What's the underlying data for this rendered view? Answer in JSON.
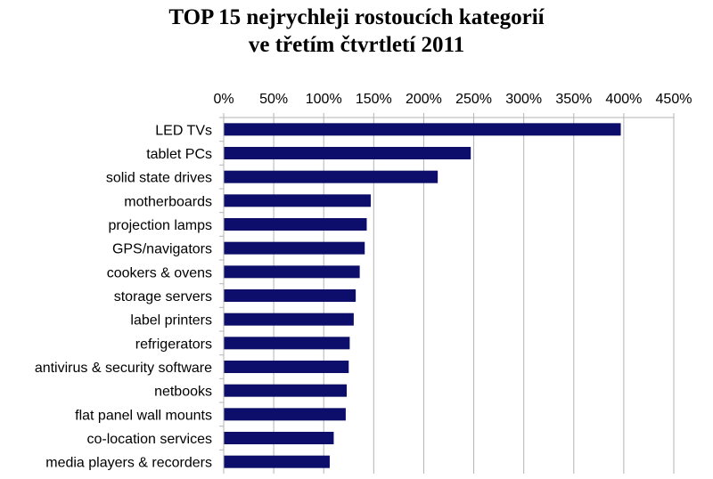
{
  "chart_data": {
    "type": "bar",
    "orientation": "horizontal",
    "title": "TOP 15 nejrychleji rostoucích kategorií",
    "subtitle": "ve třetím čtvrtletí 2011",
    "xlim": [
      0,
      450
    ],
    "x_unit": "%",
    "x_ticks": [
      "0%",
      "50%",
      "100%",
      "150%",
      "200%",
      "250%",
      "300%",
      "350%",
      "400%",
      "450%"
    ],
    "x_tick_values": [
      0,
      50,
      100,
      150,
      200,
      250,
      300,
      350,
      400,
      450
    ],
    "x_axis_position": "top",
    "grid": true,
    "bar_color": "#0d0d6b",
    "categories": [
      "LED TVs",
      "tablet PCs",
      "solid state drives",
      "motherboards",
      "projection lamps",
      "GPS/navigators",
      "cookers & ovens",
      "storage servers",
      "label printers",
      "refrigerators",
      "antivirus & security software",
      "netbooks",
      "flat panel wall mounts",
      "co-location services",
      "media players & recorders"
    ],
    "values": [
      397,
      247,
      214,
      147,
      143,
      141,
      136,
      132,
      130,
      126,
      125,
      123,
      122,
      110,
      106
    ]
  }
}
